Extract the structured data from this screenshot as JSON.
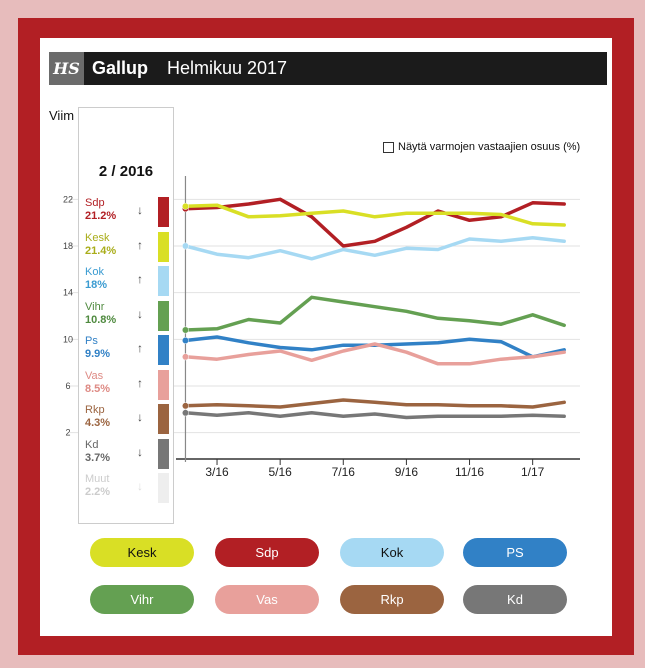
{
  "header": {
    "logo": "HS",
    "title": "Gallup",
    "subtitle": "Helmikuu 2017"
  },
  "intro_text": "Viim",
  "toggle_label": "Näytä varmojen vastaajien osuus (%)",
  "colors": {
    "Sdp": "#b21f24",
    "Kesk": "#d9df25",
    "Kok": "#a6d9f3",
    "Vihr": "#64a052",
    "Ps": "#3181c6",
    "Vas": "#e8a09b",
    "Rkp": "#9b6440",
    "Kd": "#777777",
    "Muut": "#eeeeee"
  },
  "tooltip": {
    "title": "2 / 2016",
    "rows": [
      {
        "name": "Sdp",
        "value": "21.2%",
        "arrow": "↓",
        "color": "#b21f24",
        "val_color": "#b21f24"
      },
      {
        "name": "Kesk",
        "value": "21.4%",
        "arrow": "↑",
        "color": "#d9df25",
        "val_color": "#a9ad1a"
      },
      {
        "name": "Kok",
        "value": "18%",
        "arrow": "↑",
        "color": "#a6d9f3",
        "val_color": "#3a9bd1"
      },
      {
        "name": "Vihr",
        "value": "10.8%",
        "arrow": "↓",
        "color": "#64a052",
        "val_color": "#4f8a3f"
      },
      {
        "name": "Ps",
        "value": "9.9%",
        "arrow": "↑",
        "color": "#3181c6",
        "val_color": "#3181c6"
      },
      {
        "name": "Vas",
        "value": "8.5%",
        "arrow": "↑",
        "color": "#e8a09b",
        "val_color": "#de8a84"
      },
      {
        "name": "Rkp",
        "value": "4.3%",
        "arrow": "↓",
        "color": "#9b6440",
        "val_color": "#9b6440"
      },
      {
        "name": "Kd",
        "value": "3.7%",
        "arrow": "↓",
        "color": "#777777",
        "val_color": "#666666"
      },
      {
        "name": "Muut",
        "value": "2.2%",
        "arrow": "↓",
        "color": "#eeeeee",
        "val_color": "#cccccc"
      }
    ]
  },
  "buttons": [
    {
      "label": "Kesk",
      "color": "#d9df25",
      "text_dark": true
    },
    {
      "label": "Sdp",
      "color": "#b21f24",
      "text_dark": false
    },
    {
      "label": "Kok",
      "color": "#a6d9f3",
      "text_dark": true
    },
    {
      "label": "PS",
      "color": "#3181c6",
      "text_dark": false
    },
    {
      "label": "Vihr",
      "color": "#64a052",
      "text_dark": false
    },
    {
      "label": "Vas",
      "color": "#e8a09b",
      "text_dark": false
    },
    {
      "label": "Rkp",
      "color": "#9b6440",
      "text_dark": false
    },
    {
      "label": "Kd",
      "color": "#777777",
      "text_dark": false
    }
  ],
  "chart_data": {
    "type": "line",
    "title": "",
    "xlabel": "",
    "ylabel": "",
    "ylim": [
      0,
      24
    ],
    "y_ticks": [
      2,
      6,
      10,
      14,
      18,
      22
    ],
    "x": [
      2,
      3,
      4,
      5,
      6,
      7,
      8,
      9,
      10,
      11,
      12,
      13,
      14
    ],
    "x_tick_values": [
      3,
      5,
      7,
      9,
      11,
      13
    ],
    "x_tick_labels": [
      "3/16",
      "5/16",
      "7/16",
      "9/16",
      "11/16",
      "1/17"
    ],
    "xlim": [
      1.7,
      14.5
    ],
    "grid": true,
    "series": [
      {
        "name": "Sdp",
        "values": [
          21.2,
          21.3,
          21.6,
          22.0,
          20.5,
          18.0,
          18.4,
          19.6,
          21.0,
          20.2,
          20.5,
          21.7,
          21.6
        ]
      },
      {
        "name": "Kesk",
        "values": [
          21.4,
          21.5,
          20.5,
          20.6,
          20.8,
          21.0,
          20.5,
          20.8,
          20.8,
          20.8,
          20.7,
          19.9,
          19.8
        ]
      },
      {
        "name": "Kok",
        "values": [
          18.0,
          17.3,
          17.0,
          17.6,
          16.9,
          17.7,
          17.2,
          17.8,
          17.7,
          18.6,
          18.4,
          18.7,
          18.4
        ]
      },
      {
        "name": "Vihr",
        "values": [
          10.8,
          10.9,
          11.7,
          11.4,
          13.6,
          13.2,
          12.8,
          12.4,
          11.8,
          11.6,
          11.3,
          12.1,
          11.2
        ]
      },
      {
        "name": "Ps",
        "values": [
          9.9,
          10.2,
          9.7,
          9.3,
          9.1,
          9.5,
          9.5,
          9.6,
          9.7,
          10.0,
          9.8,
          8.5,
          9.1
        ]
      },
      {
        "name": "Vas",
        "values": [
          8.5,
          8.3,
          8.7,
          9.0,
          8.2,
          9.0,
          9.6,
          8.9,
          7.9,
          7.9,
          8.3,
          8.5,
          8.9
        ]
      },
      {
        "name": "Rkp",
        "values": [
          4.3,
          4.4,
          4.3,
          4.2,
          4.5,
          4.8,
          4.6,
          4.4,
          4.4,
          4.3,
          4.3,
          4.2,
          4.6
        ]
      },
      {
        "name": "Kd",
        "values": [
          3.7,
          3.5,
          3.7,
          3.4,
          3.7,
          3.4,
          3.6,
          3.3,
          3.4,
          3.4,
          3.4,
          3.5,
          3.4
        ]
      }
    ]
  }
}
